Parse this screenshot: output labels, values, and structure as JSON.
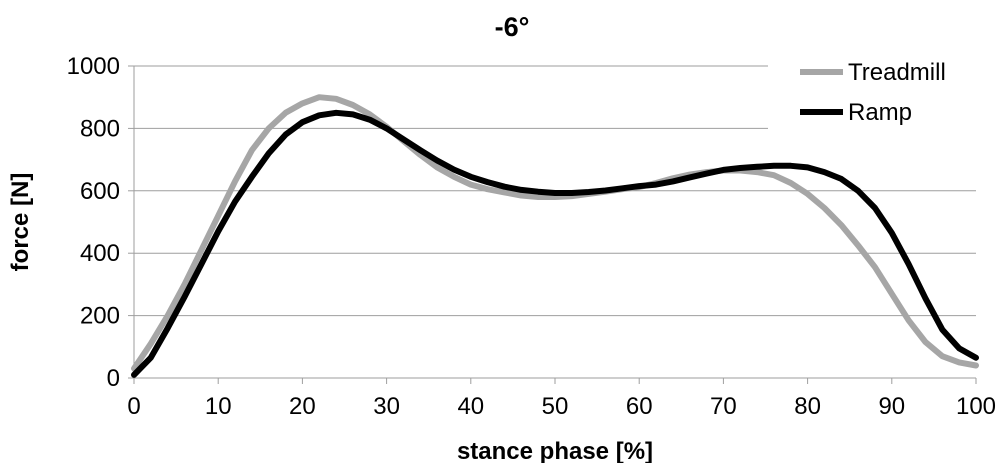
{
  "chart_data": {
    "type": "line",
    "title": "-6°",
    "xlabel": "stance phase [%]",
    "ylabel": "force [N]",
    "xlim": [
      0,
      100
    ],
    "ylim": [
      0,
      1000
    ],
    "xticks": [
      0,
      10,
      20,
      30,
      40,
      50,
      60,
      70,
      80,
      90,
      100
    ],
    "yticks": [
      0,
      200,
      400,
      600,
      800,
      1000
    ],
    "xtick_labels": [
      "0",
      "10",
      "20",
      "30",
      "40",
      "50",
      "60",
      "70",
      "80",
      "90",
      "100"
    ],
    "ytick_labels": [
      "0",
      "200",
      "400",
      "600",
      "800",
      "1000"
    ],
    "grid": "horizontal",
    "legend": "top-right",
    "series": [
      {
        "name": "Treadmill",
        "color": "#a6a6a6",
        "x": [
          0,
          2,
          4,
          6,
          8,
          10,
          12,
          14,
          16,
          18,
          20,
          22,
          24,
          26,
          28,
          30,
          32,
          34,
          36,
          38,
          40,
          42,
          44,
          46,
          48,
          50,
          52,
          54,
          56,
          58,
          60,
          62,
          64,
          66,
          68,
          70,
          72,
          74,
          76,
          78,
          80,
          82,
          84,
          86,
          88,
          90,
          92,
          94,
          96,
          98,
          100
        ],
        "y": [
          30,
          110,
          200,
          300,
          410,
          520,
          630,
          730,
          800,
          850,
          880,
          900,
          895,
          875,
          845,
          805,
          760,
          715,
          675,
          645,
          620,
          605,
          595,
          585,
          580,
          580,
          583,
          590,
          597,
          605,
          612,
          625,
          640,
          652,
          660,
          665,
          665,
          660,
          650,
          625,
          590,
          545,
          490,
          425,
          355,
          270,
          185,
          115,
          70,
          50,
          40
        ]
      },
      {
        "name": "Ramp",
        "color": "#000000",
        "x": [
          0,
          2,
          4,
          6,
          8,
          10,
          12,
          14,
          16,
          18,
          20,
          22,
          24,
          26,
          28,
          30,
          32,
          34,
          36,
          38,
          40,
          42,
          44,
          46,
          48,
          50,
          52,
          54,
          56,
          58,
          60,
          62,
          64,
          66,
          68,
          70,
          72,
          74,
          76,
          78,
          80,
          82,
          84,
          86,
          88,
          90,
          92,
          94,
          96,
          98,
          100
        ],
        "y": [
          10,
          65,
          160,
          260,
          365,
          470,
          565,
          645,
          720,
          780,
          820,
          842,
          850,
          845,
          828,
          800,
          765,
          730,
          697,
          668,
          645,
          628,
          613,
          603,
          597,
          593,
          593,
          596,
          601,
          608,
          615,
          620,
          630,
          643,
          655,
          667,
          673,
          677,
          680,
          680,
          675,
          660,
          638,
          600,
          545,
          465,
          365,
          255,
          155,
          95,
          65
        ]
      }
    ]
  }
}
